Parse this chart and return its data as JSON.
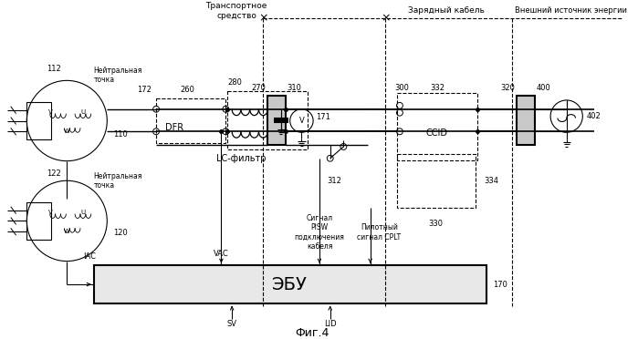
{
  "bg_color": "#ffffff",
  "fig_title": "Фиг.4",
  "top_label1": "Транспортное\nсредство",
  "top_label2": "Зарядный кабель",
  "top_label3": "Внешний источник энергии",
  "lbl_172": "172",
  "lbl_260": "260",
  "lbl_280": "280",
  "lbl_270": "270",
  "lbl_310": "310",
  "lbl_300": "300",
  "lbl_332": "332",
  "lbl_320": "320",
  "lbl_400": "400",
  "lbl_402": "402",
  "lbl_171": "171",
  "lbl_DFR": "DFR",
  "lbl_LC": "LC-фильтр",
  "lbl_CCID": "CCID",
  "lbl_312": "312",
  "lbl_334": "334",
  "lbl_330": "330",
  "lbl_112": "112",
  "lbl_110": "110",
  "lbl_122": "122",
  "lbl_120": "120",
  "lbl_170": "170",
  "lbl_IAC": "IAC",
  "lbl_VAC": "VAC",
  "lbl_SV": "SV",
  "lbl_LID": "LID",
  "lbl_neutral1": "Нейтральная\nточка",
  "lbl_neutral2": "Нейтральная\nточка",
  "lbl_EBU": "ЭБУ",
  "lbl_PISW": "Сигнал\nPISW\nподключения\nкабеля",
  "lbl_CPLT": "Пилотный\nсигнал CPLT",
  "lbl_V": "V",
  "lbl_U": "U",
  "lbl_W": "W"
}
